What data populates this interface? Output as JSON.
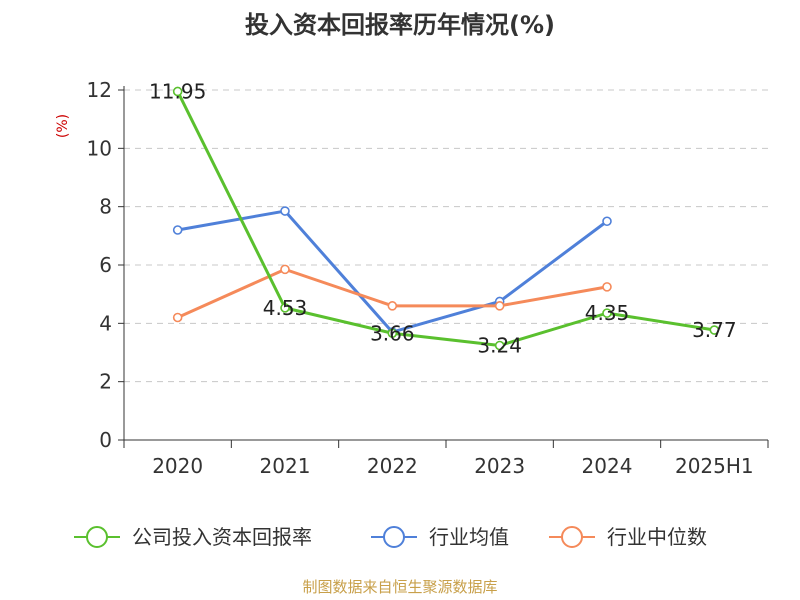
{
  "title": "投入资本回报率历年情况(%)",
  "y_unit": "(%)",
  "source": "制图数据来自恒生聚源数据库",
  "chart_data": {
    "type": "line",
    "title": "投入资本回报率历年情况(%)",
    "ylabel": "(%)",
    "categories": [
      "2020",
      "2021",
      "2022",
      "2023",
      "2024",
      "2025H1"
    ],
    "ylim": [
      0,
      12
    ],
    "yticks": [
      0,
      2,
      4,
      6,
      8,
      10,
      12
    ],
    "grid": true,
    "legend_position": "bottom",
    "series": [
      {
        "name": "公司投入资本回报率",
        "color": "#5ac02e",
        "values": [
          11.95,
          4.53,
          3.66,
          3.24,
          4.35,
          3.77
        ],
        "labels": [
          "11.95",
          "4.53",
          "3.66",
          "3.24",
          "4.35",
          "3.77"
        ]
      },
      {
        "name": "行业均值",
        "color": "#4f80d9",
        "values": [
          7.2,
          7.85,
          3.7,
          4.75,
          7.5,
          null
        ]
      },
      {
        "name": "行业中位数",
        "color": "#f58a5a",
        "values": [
          4.2,
          5.85,
          4.6,
          4.6,
          5.25,
          null
        ]
      }
    ]
  }
}
